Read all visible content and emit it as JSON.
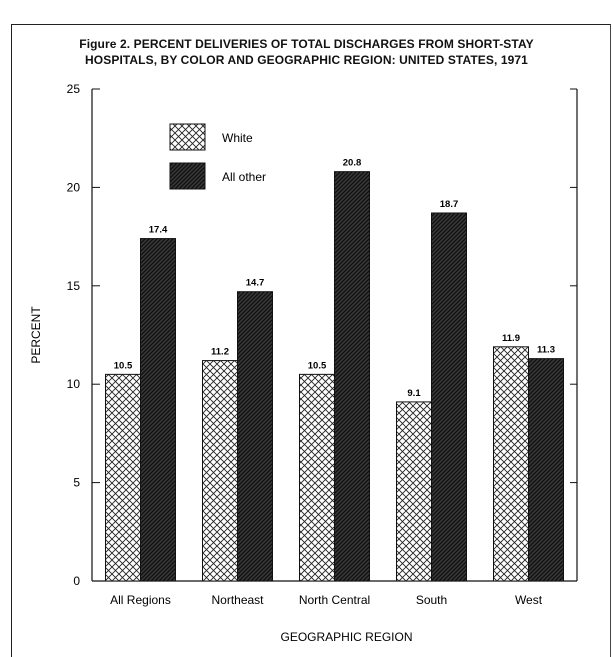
{
  "title_line1": "Figure 2.  PERCENT DELIVERIES OF TOTAL DISCHARGES FROM SHORT-STAY",
  "title_line2": "HOSPITALS, BY COLOR AND GEOGRAPHIC REGION: UNITED STATES, 1971",
  "chart_data": {
    "type": "bar",
    "title": "Figure 2.  PERCENT DELIVERIES OF TOTAL DISCHARGES FROM SHORT-STAY HOSPITALS, BY COLOR AND GEOGRAPHIC REGION: UNITED STATES, 1971",
    "xlabel": "GEOGRAPHIC REGION",
    "ylabel": "PERCENT",
    "categories": [
      "All Regions",
      "Northeast",
      "North Central",
      "South",
      "West"
    ],
    "series": [
      {
        "name": "White",
        "values": [
          10.5,
          11.2,
          10.5,
          9.1,
          11.9
        ],
        "labels": [
          "10.5",
          "11.2",
          "10.5",
          "9.1",
          "11.9"
        ],
        "pattern": "crosshatch",
        "color": "#ffffff"
      },
      {
        "name": "All other",
        "values": [
          17.4,
          14.7,
          20.8,
          18.7,
          11.3
        ],
        "labels": [
          "17.4",
          "14.7",
          "20.8",
          "18.7",
          "11.3"
        ],
        "pattern": "dark-hatch",
        "color": "#2b2b2b"
      }
    ],
    "ylim": [
      0,
      25
    ],
    "yticks": [
      0,
      5,
      10,
      15,
      20,
      25
    ],
    "ytick_labels": [
      "0",
      "5",
      "10",
      "15",
      "20",
      "25"
    ],
    "grid": false,
    "legend_position": "top-left"
  }
}
